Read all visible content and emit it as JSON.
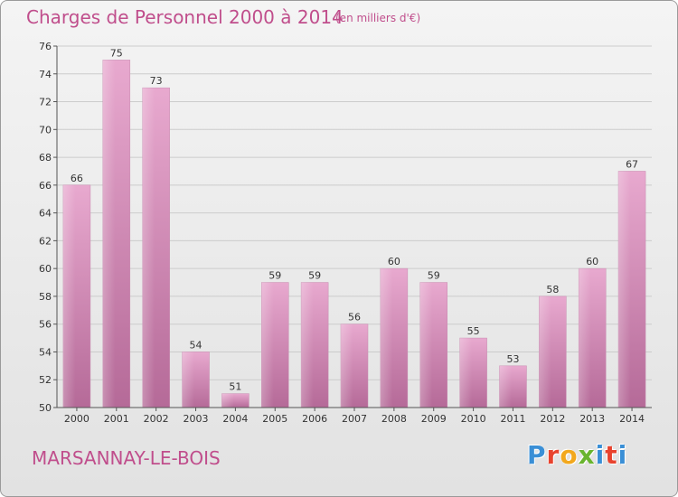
{
  "header": {
    "title": "Charges de Personnel 2000 à 2014",
    "subtitle": "(en milliers d'€)"
  },
  "footer": {
    "commune": "MARSANNAY-LE-BOIS",
    "logo_letters": [
      "P",
      "r",
      "o",
      "x",
      "i",
      "t",
      "i"
    ]
  },
  "colors": {
    "bar_top": "#e8a9cf",
    "bar_bottom": "#b56a98",
    "title": "#c04e8c",
    "grid": "#cccccc"
  },
  "chart_data": {
    "type": "bar",
    "title": "Charges de Personnel 2000 à 2014",
    "subtitle": "(en milliers d'€)",
    "categories": [
      "2000",
      "2001",
      "2002",
      "2003",
      "2004",
      "2005",
      "2006",
      "2007",
      "2008",
      "2009",
      "2010",
      "2011",
      "2012",
      "2013",
      "2014"
    ],
    "values": [
      66,
      75,
      73,
      54,
      51,
      59,
      59,
      56,
      60,
      59,
      55,
      53,
      58,
      60,
      67
    ],
    "ylim": [
      50,
      76
    ],
    "yticks": [
      50,
      52,
      54,
      56,
      58,
      60,
      62,
      64,
      66,
      68,
      70,
      72,
      74,
      76
    ],
    "grid": true,
    "xlabel": "",
    "ylabel": ""
  }
}
